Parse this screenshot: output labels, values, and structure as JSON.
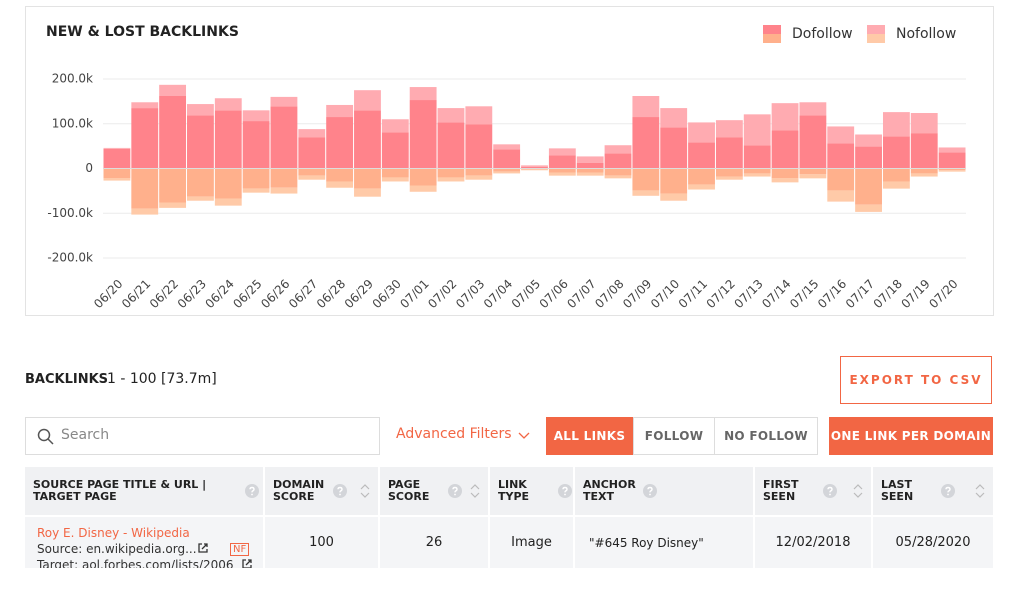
{
  "chart_data": {
    "type": "bar",
    "stacked": true,
    "title": "NEW & LOST BACKLINKS",
    "categories": [
      "06/20",
      "06/21",
      "06/22",
      "06/23",
      "06/24",
      "06/25",
      "06/26",
      "06/27",
      "06/28",
      "06/29",
      "06/30",
      "07/01",
      "07/02",
      "07/03",
      "07/04",
      "07/05",
      "07/06",
      "07/07",
      "07/08",
      "07/09",
      "07/10",
      "07/11",
      "07/12",
      "07/13",
      "07/14",
      "07/15",
      "07/16",
      "07/17",
      "07/18",
      "07/19",
      "07/20"
    ],
    "series": [
      {
        "name": "Dofollow",
        "color": "#ff838b",
        "lost_color": "#ffb08c",
        "values": [
          44000,
          135000,
          162000,
          119000,
          130000,
          106000,
          139000,
          70000,
          115000,
          130000,
          81000,
          153000,
          103000,
          99000,
          43000,
          4000,
          29000,
          13000,
          34000,
          115000,
          92000,
          58000,
          70000,
          52000,
          85000,
          119000,
          56000,
          49000,
          72000,
          79000,
          36000
        ],
        "lost_values": [
          -22000,
          -90000,
          -76000,
          -63000,
          -67000,
          -45000,
          -43000,
          -16000,
          -29000,
          -45000,
          -20000,
          -38000,
          -20000,
          -16000,
          -7000,
          -2000,
          -9000,
          -9000,
          -16000,
          -49000,
          -56000,
          -36000,
          -18000,
          -11000,
          -22000,
          -13000,
          -49000,
          -81000,
          -29000,
          -11000,
          -4000
        ]
      },
      {
        "name": "Nofollow",
        "color": "#ffabb1",
        "lost_color": "#ffcaa8",
        "values": [
          2000,
          13000,
          25000,
          25000,
          27000,
          24000,
          21000,
          18000,
          27000,
          45000,
          29000,
          29000,
          32000,
          40000,
          11000,
          3000,
          16000,
          14000,
          18000,
          47000,
          43000,
          45000,
          38000,
          69000,
          61000,
          29000,
          38000,
          27000,
          54000,
          45000,
          11000
        ],
        "lost_values": [
          -5000,
          -13000,
          -12000,
          -9000,
          -16000,
          -9000,
          -13000,
          -9000,
          -14000,
          -18000,
          -9000,
          -14000,
          -9000,
          -9000,
          -4000,
          -2000,
          -7000,
          -7000,
          -6000,
          -12000,
          -16000,
          -11000,
          -7000,
          -7000,
          -9000,
          -9000,
          -25000,
          -16000,
          -16000,
          -7000,
          -3000
        ]
      }
    ],
    "ylim": [
      -200000,
      200000
    ],
    "yticks": [
      {
        "value": -200000,
        "label": "-200.0k"
      },
      {
        "value": -100000,
        "label": "-100.0k"
      },
      0,
      {
        "value": 100000,
        "label": "100.0k"
      },
      {
        "value": 200000,
        "label": "200.0k"
      }
    ],
    "grid": true,
    "legend": "top-right"
  },
  "backlinks": {
    "title": "BACKLINKS",
    "count": "1 - 100 [73.7m]",
    "export": "EXPORT TO CSV",
    "search_placeholder": "Search",
    "advanced_filters": "Advanced Filters",
    "filters": [
      "ALL LINKS",
      "FOLLOW",
      "NO FOLLOW"
    ],
    "one_link": "ONE LINK PER DOMAIN"
  },
  "table": {
    "headers": [
      "SOURCE PAGE TITLE & URL | TARGET PAGE",
      "DOMAIN SCORE",
      "PAGE SCORE",
      "LINK TYPE",
      "ANCHOR TEXT",
      "FIRST SEEN",
      "LAST SEEN"
    ],
    "rows": [
      {
        "title": "Roy E. Disney - Wikipedia",
        "source": "Source: en.wikipedia.org...",
        "tag": "NF",
        "target": "Target: aol.forbes.com/lists/2006",
        "domain_score": 100,
        "page_score": 26,
        "link_type": "Image",
        "anchor": "\"#645 Roy Disney\"",
        "first_seen": "12/02/2018",
        "last_seen": "05/28/2020"
      }
    ]
  }
}
